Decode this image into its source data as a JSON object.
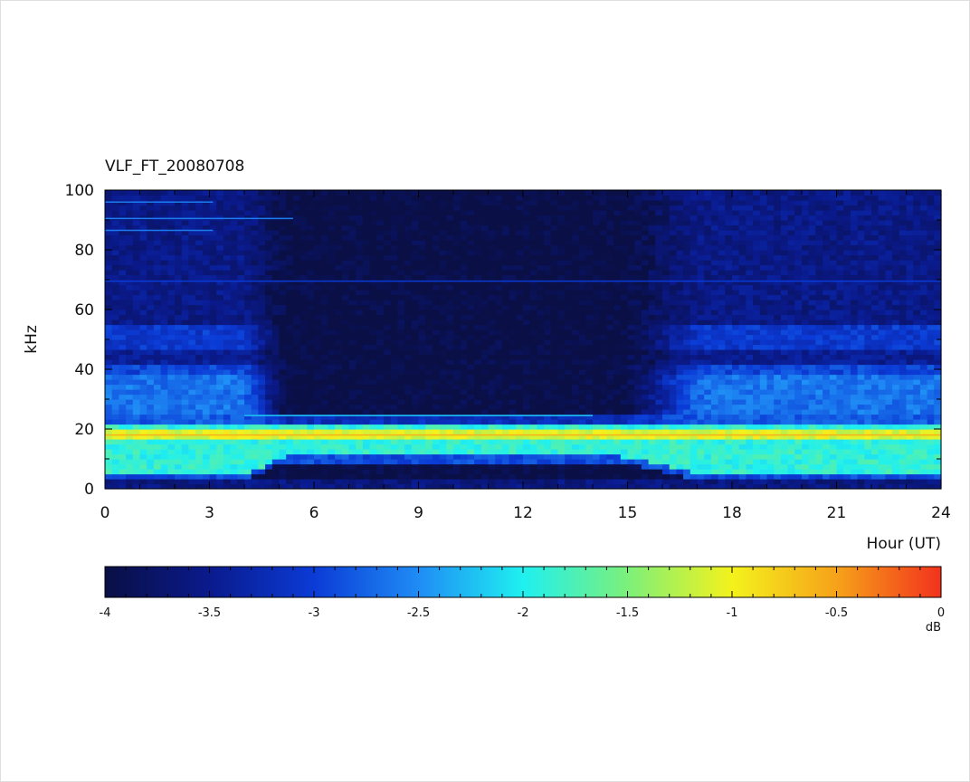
{
  "chart_data": {
    "type": "heatmap",
    "title": "VLF_FT_20080708",
    "xlabel": "Hour (UT)",
    "ylabel": "kHz",
    "xlim": [
      0,
      24
    ],
    "ylim": [
      0,
      100
    ],
    "x_ticks": [
      0,
      3,
      6,
      9,
      12,
      15,
      18,
      21,
      24
    ],
    "y_ticks": [
      0,
      20,
      40,
      60,
      80,
      100
    ],
    "colorbar": {
      "label": "dB",
      "range": [
        -4,
        0
      ],
      "ticks": [
        -4,
        -3.5,
        -3,
        -2.5,
        -2,
        -1.5,
        -1,
        -0.5,
        0
      ],
      "tick_labels": [
        "-4",
        "-3.5",
        "-3",
        "-2.5",
        "-2",
        "-1.5",
        "-1",
        "-0.5",
        "0"
      ],
      "colormap": [
        "#0a0f45",
        "#0a1a8c",
        "#0b3bd6",
        "#1f8cf5",
        "#1ff0f0",
        "#7cf07a",
        "#f4f21c",
        "#f6a21a",
        "#f2321c"
      ]
    },
    "description_bands": [
      {
        "hours": [
          0,
          24
        ],
        "khz": [
          10,
          22
        ],
        "level_db": -1.8
      },
      {
        "hours": [
          5,
          15
        ],
        "khz": [
          0,
          9
        ],
        "level_db": -4.0
      },
      {
        "hours": [
          5,
          15
        ],
        "khz": [
          26,
          100
        ],
        "level_db": -4.0
      },
      {
        "hours": [
          0,
          4.5
        ],
        "khz": [
          30,
          42
        ],
        "level_db": -2.8
      },
      {
        "hours": [
          17,
          24
        ],
        "khz": [
          25,
          42
        ],
        "level_db": -2.8
      },
      {
        "hours": [
          0,
          24
        ],
        "khz": [
          17,
          19
        ],
        "level_db": -0.9
      }
    ]
  }
}
